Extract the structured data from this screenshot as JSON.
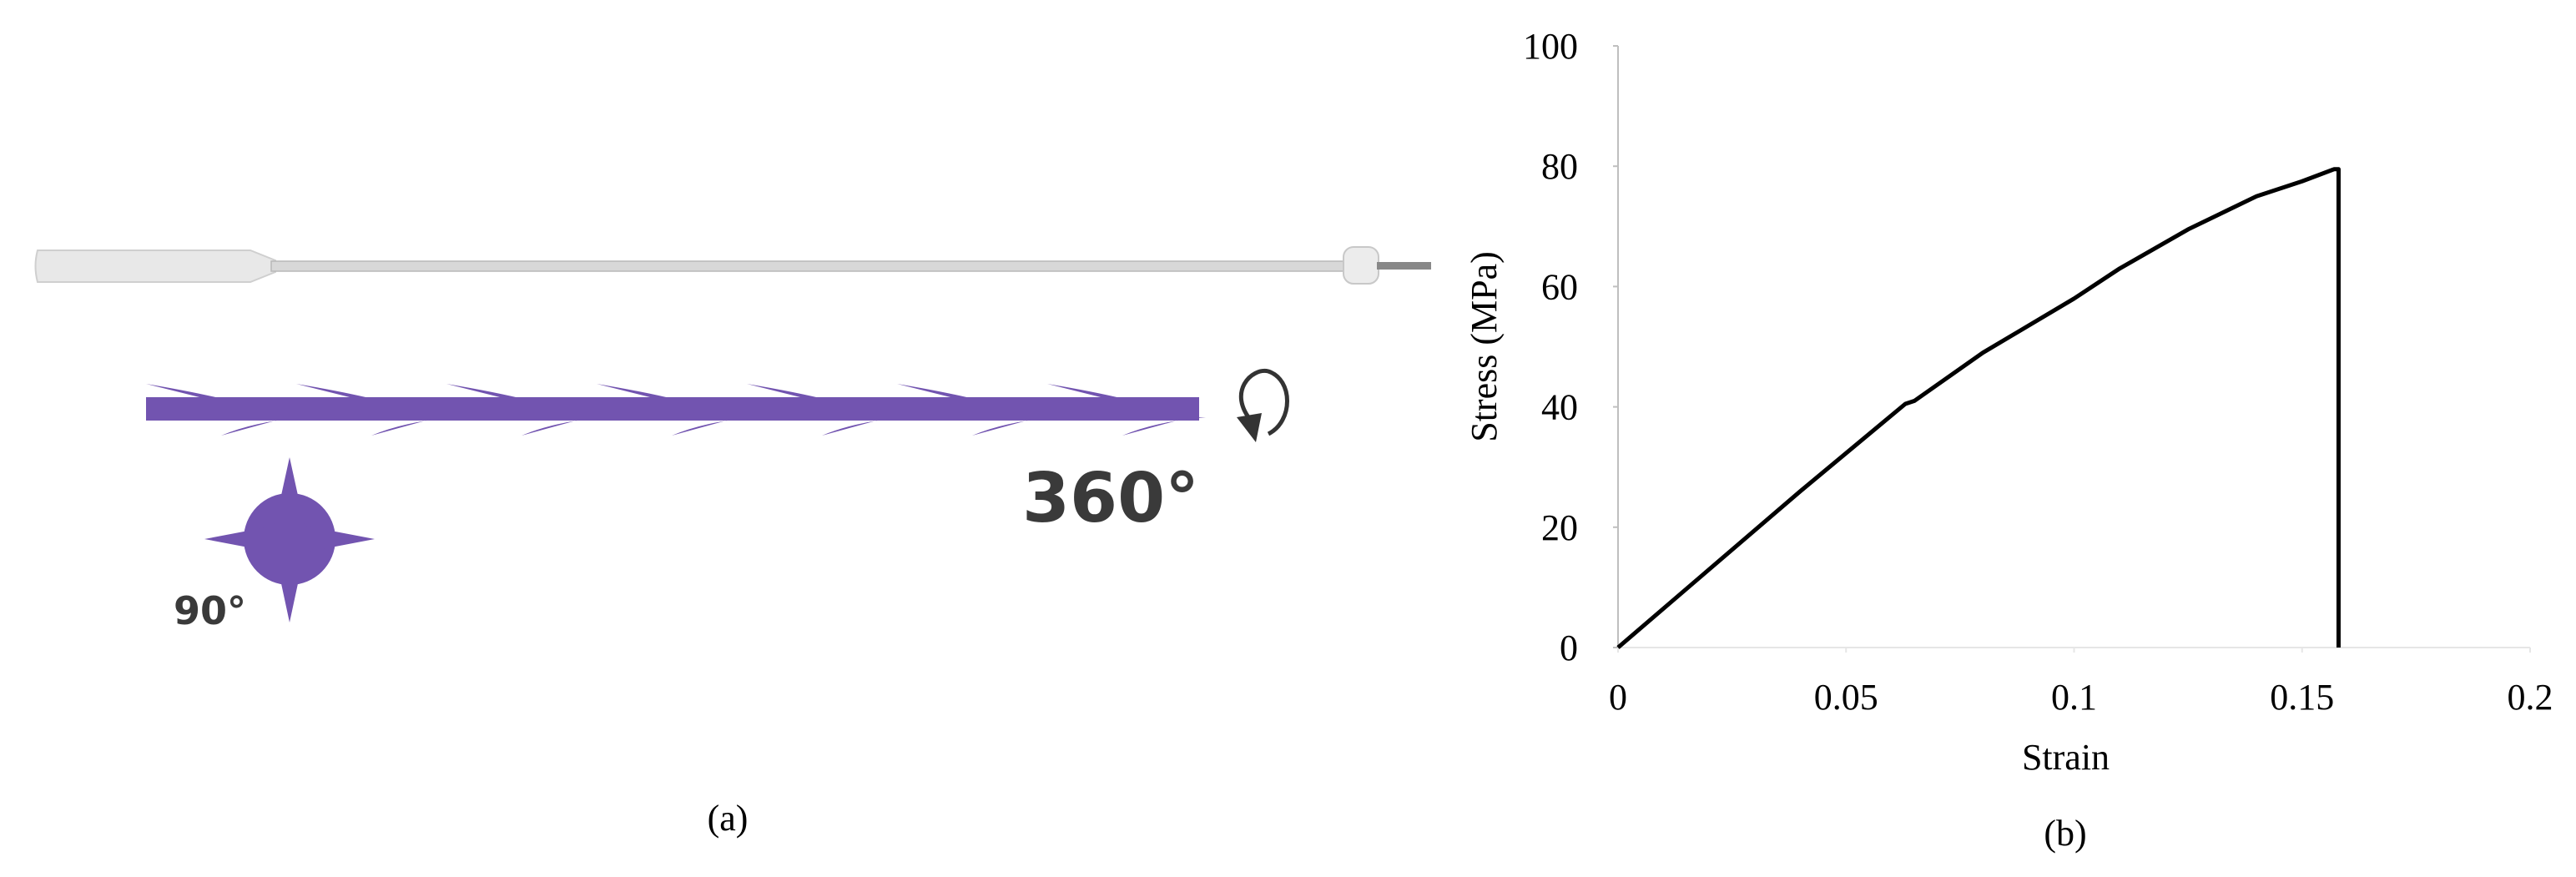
{
  "panel_a": {
    "caption": "(a)",
    "rotation_label": "360°",
    "angle_label": "90°"
  },
  "chart_data": {
    "type": "line",
    "caption": "(b)",
    "xlabel": "Strain",
    "ylabel": "Stress (MPa)",
    "x": [
      0,
      0.02,
      0.04,
      0.063,
      0.065,
      0.08,
      0.1,
      0.11,
      0.125,
      0.14,
      0.15,
      0.157,
      0.158,
      0.158
    ],
    "values": [
      0,
      13,
      26,
      40.5,
      41,
      49,
      58,
      63,
      69.5,
      75,
      77.5,
      79.5,
      79.5,
      0
    ],
    "color": "#000000",
    "xlim": [
      0,
      0.2
    ],
    "ylim": [
      0,
      100
    ],
    "xticks": [
      0,
      0.05,
      0.1,
      0.15,
      0.2
    ],
    "yticks": [
      0,
      20,
      40,
      60,
      80,
      100
    ]
  }
}
